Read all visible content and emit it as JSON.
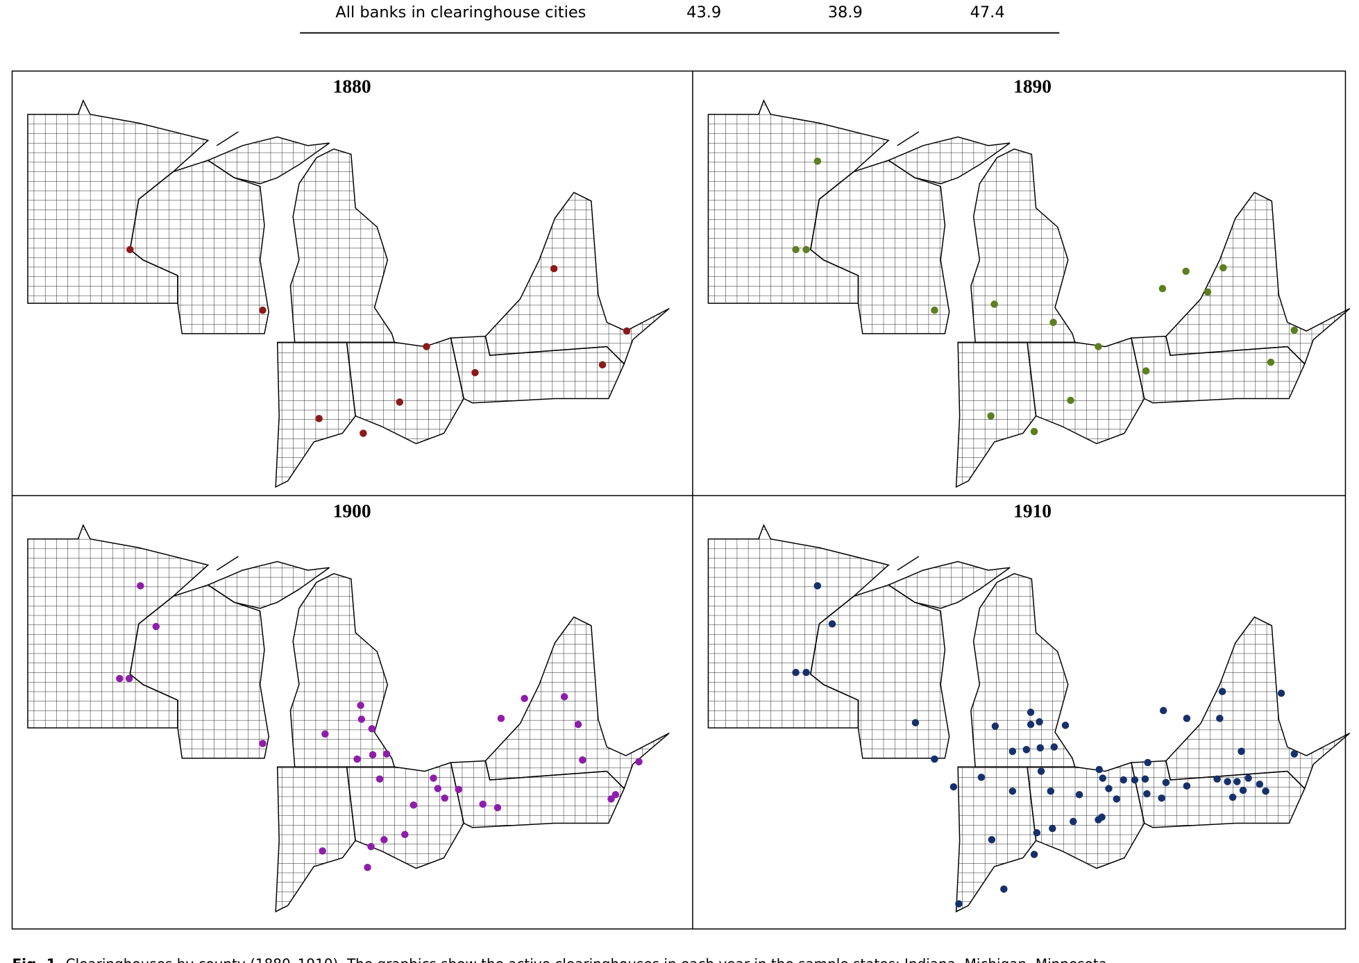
{
  "table_row": {
    "label": "All banks in clearinghouse cities",
    "values": [
      43.9,
      38.9,
      47.4
    ]
  },
  "figure": {
    "panels": [
      {
        "title": "1880",
        "color": "#8b1a1a"
      },
      {
        "title": "1890",
        "color": "#5c7f1f"
      },
      {
        "title": "1900",
        "color": "#8e1eaa"
      },
      {
        "title": "1910",
        "color": "#16306b"
      }
    ]
  },
  "caption": {
    "label": "Fig. 1.",
    "text": "Clearinghouses by county (1880–1910). The graphics show the active clearinghouses in each year in the sample states: Indiana, Michigan, Minnesota,"
  }
}
